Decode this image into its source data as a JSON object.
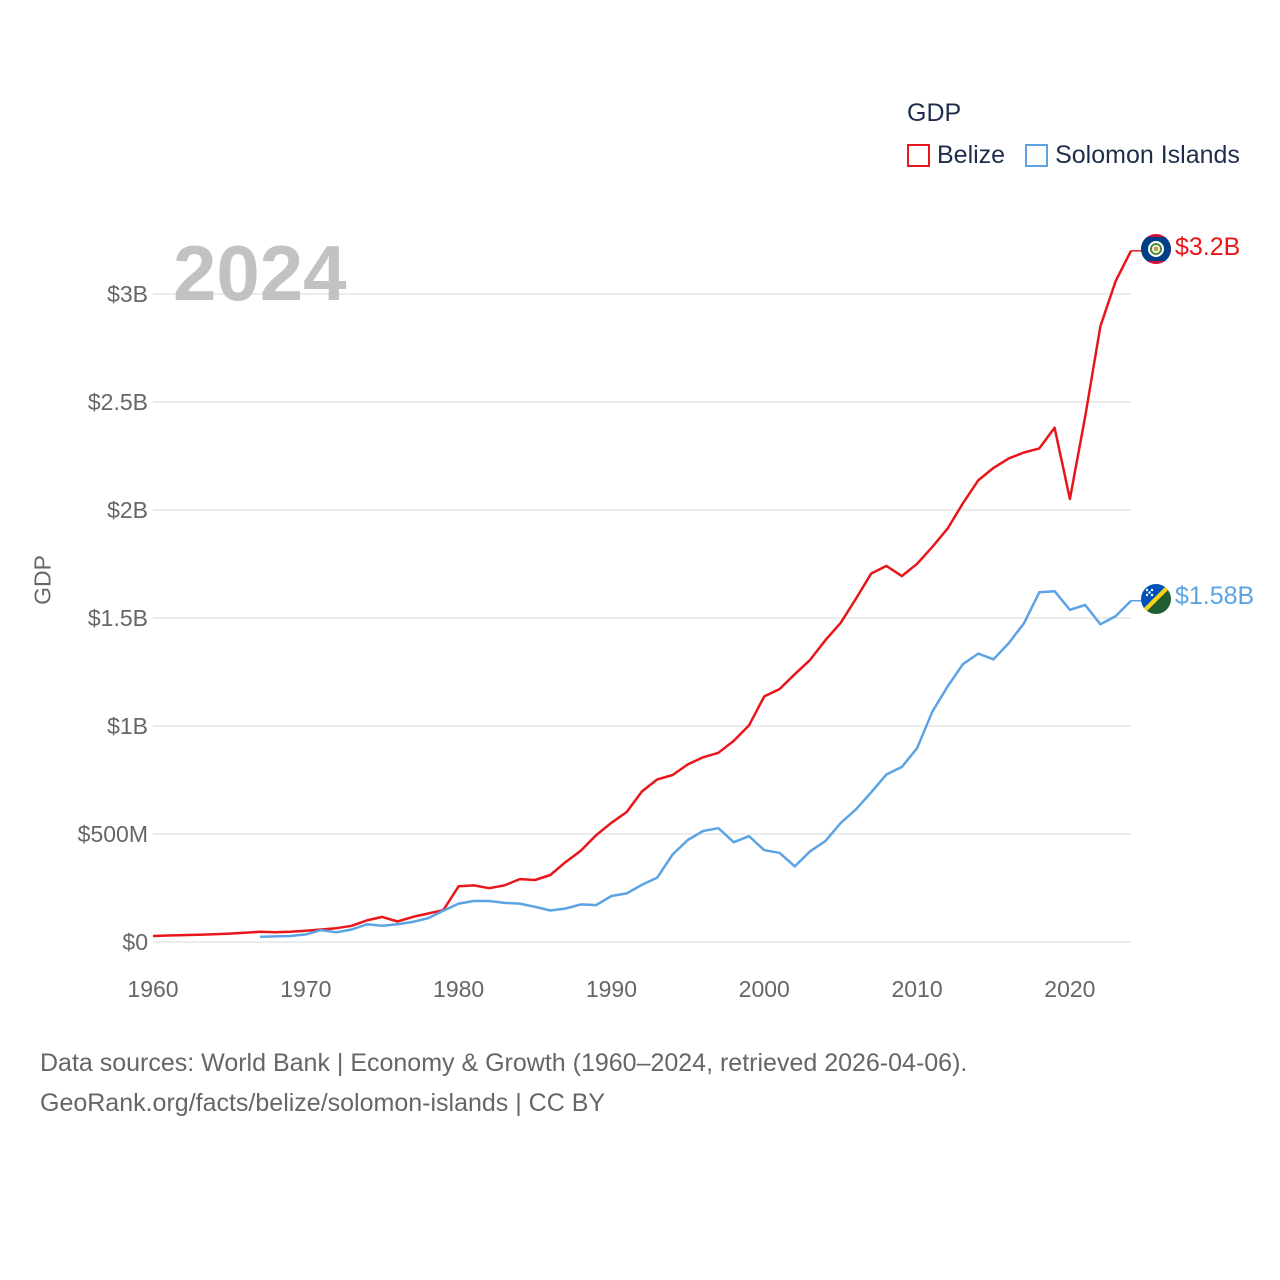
{
  "legend": {
    "title": "GDP",
    "items": [
      {
        "label": "Belize",
        "color": "#e8161b"
      },
      {
        "label": "Solomon Islands",
        "color": "#5ba3e4"
      }
    ]
  },
  "year_label": "2024",
  "footer": {
    "line1": "Data sources: World Bank | Economy & Growth (1960–2024, retrieved 2026-04-06).",
    "line2": "GeoRank.org/facts/belize/solomon-islands | CC BY"
  },
  "end_labels": {
    "belize": "$3.2B",
    "solomon": "$1.58B"
  },
  "flags": {
    "belize": "belize-flag-icon",
    "solomon": "solomon-islands-flag-icon"
  },
  "chart_data": {
    "type": "line",
    "title": "",
    "xlabel": "",
    "ylabel": "GDP",
    "xlim": [
      1960,
      2024
    ],
    "ylim": [
      0,
      3300000000
    ],
    "x_ticks": [
      1960,
      1970,
      1980,
      1990,
      2000,
      2010,
      2020
    ],
    "x_tick_labels": [
      "1960",
      "1970",
      "1980",
      "1990",
      "2000",
      "2010",
      "2020"
    ],
    "y_ticks": [
      0,
      500000000,
      1000000000,
      1500000000,
      2000000000,
      2500000000,
      3000000000
    ],
    "y_tick_labels": [
      "$0",
      "$500M",
      "$1B",
      "$1.5B",
      "$2B",
      "$2.5B",
      "$3B"
    ],
    "grid": true,
    "legend_position": "top-right",
    "series": [
      {
        "name": "Belize",
        "color": "#e8161b",
        "x": [
          1960,
          1961,
          1962,
          1963,
          1964,
          1965,
          1966,
          1967,
          1968,
          1969,
          1970,
          1971,
          1972,
          1973,
          1974,
          1975,
          1976,
          1977,
          1978,
          1979,
          1980,
          1981,
          1982,
          1983,
          1984,
          1985,
          1986,
          1987,
          1988,
          1989,
          1990,
          1991,
          1992,
          1993,
          1994,
          1995,
          1996,
          1997,
          1998,
          1999,
          2000,
          2001,
          2002,
          2003,
          2004,
          2005,
          2006,
          2007,
          2008,
          2009,
          2010,
          2011,
          2012,
          2013,
          2014,
          2015,
          2016,
          2017,
          2018,
          2019,
          2020,
          2021,
          2022,
          2023,
          2024
        ],
        "values": [
          28000000,
          30000000,
          32000000,
          34000000,
          36000000,
          39000000,
          43000000,
          47000000,
          45000000,
          47000000,
          52000000,
          58000000,
          64000000,
          75000000,
          100000000,
          116000000,
          95000000,
          116000000,
          132000000,
          147000000,
          258000000,
          262000000,
          249000000,
          262000000,
          291000000,
          287000000,
          310000000,
          370000000,
          423000000,
          495000000,
          552000000,
          602000000,
          697000000,
          753000000,
          773000000,
          822000000,
          855000000,
          876000000,
          931000000,
          1003000000,
          1137000000,
          1171000000,
          1240000000,
          1306000000,
          1397000000,
          1478000000,
          1589000000,
          1706000000,
          1741000000,
          1694000000,
          1751000000,
          1829000000,
          1914000000,
          2031000000,
          2137000000,
          2195000000,
          2239000000,
          2266000000,
          2285000000,
          2381000000,
          2051000000,
          2433000000,
          2851000000,
          3060000000,
          3200000000
        ]
      },
      {
        "name": "Solomon Islands",
        "color": "#5ba3e4",
        "x": [
          1967,
          1968,
          1969,
          1970,
          1971,
          1972,
          1973,
          1974,
          1975,
          1976,
          1977,
          1978,
          1979,
          1980,
          1981,
          1982,
          1983,
          1984,
          1985,
          1986,
          1987,
          1988,
          1989,
          1990,
          1991,
          1992,
          1993,
          1994,
          1995,
          1996,
          1997,
          1998,
          1999,
          2000,
          2001,
          2002,
          2003,
          2004,
          2005,
          2006,
          2007,
          2008,
          2009,
          2010,
          2011,
          2012,
          2013,
          2014,
          2015,
          2016,
          2017,
          2018,
          2019,
          2020,
          2021,
          2022,
          2023,
          2024
        ],
        "values": [
          24000000,
          26000000,
          28000000,
          35000000,
          55000000,
          45000000,
          58000000,
          82000000,
          75000000,
          82000000,
          93000000,
          110000000,
          145000000,
          178000000,
          190000000,
          190000000,
          181000000,
          178000000,
          163000000,
          146000000,
          155000000,
          174000000,
          171000000,
          213000000,
          225000000,
          265000000,
          298000000,
          405000000,
          472000000,
          514000000,
          527000000,
          462000000,
          490000000,
          425000000,
          413000000,
          350000000,
          420000000,
          467000000,
          551000000,
          614000000,
          693000000,
          776000000,
          810000000,
          897000000,
          1066000000,
          1183000000,
          1286000000,
          1335000000,
          1309000000,
          1384000000,
          1476000000,
          1619000000,
          1624000000,
          1538000000,
          1560000000,
          1471000000,
          1509000000,
          1580000000
        ]
      }
    ]
  }
}
